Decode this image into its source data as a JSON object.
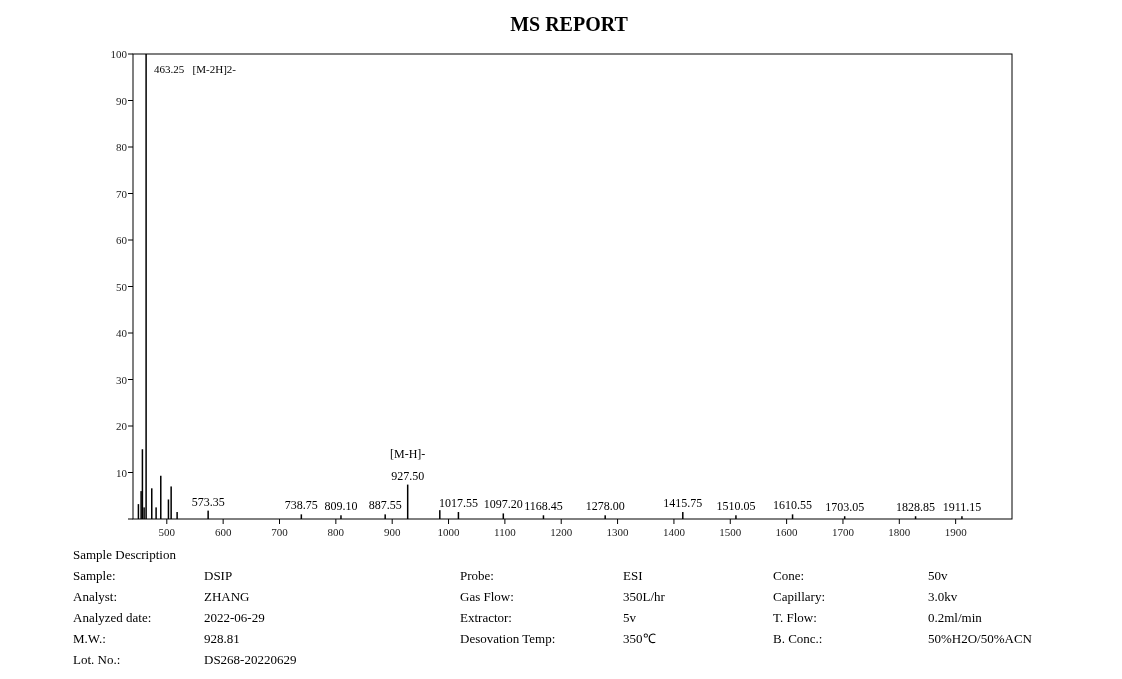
{
  "chart_data": {
    "type": "bar",
    "title": "MS REPORT",
    "color": "#000000",
    "x": [
      449.6,
      454.4,
      456.7,
      459.7,
      463.25,
      473.3,
      481,
      489.3,
      502.9,
      507.7,
      518.3,
      573.35,
      738.75,
      809.1,
      887.55,
      927.5,
      984.5,
      1017.55,
      1097.2,
      1168.45,
      1278,
      1415.75,
      1510.05,
      1610.55,
      1703.05,
      1828.85,
      1911.15
    ],
    "values": [
      3.2,
      6,
      15,
      2.5,
      100,
      6.6,
      2.5,
      9.3,
      4.2,
      7,
      1.5,
      1.8,
      1,
      0.8,
      1,
      7.4,
      1.9,
      1.5,
      1.2,
      0.8,
      0.8,
      1.5,
      0.8,
      1,
      0.6,
      0.6,
      0.6
    ],
    "xlim": [
      440,
      2000
    ],
    "ylim": [
      0,
      100
    ],
    "xticks": [
      500,
      600,
      700,
      800,
      900,
      1000,
      1100,
      1200,
      1300,
      1400,
      1500,
      1600,
      1700,
      1800,
      1900
    ],
    "yticks": [
      {
        "value": 0,
        "label": null
      },
      10,
      20,
      30,
      40,
      50,
      60,
      70,
      80,
      90,
      100
    ],
    "annotations": [
      {
        "text": "463.25   [M-2H]2-",
        "x": 463.25,
        "y": 100
      },
      {
        "text": "573.35",
        "x": 573.35,
        "y": 1.8
      },
      {
        "text": "738.75",
        "x": 738.75,
        "y": 1
      },
      {
        "text": "809.10",
        "x": 809.1,
        "y": 0.8
      },
      {
        "text": "887.55",
        "x": 887.55,
        "y": 1
      },
      {
        "text": "927.50",
        "x": 927.5,
        "y": 7.4
      },
      {
        "text": "[M-H]-",
        "x": 927.5,
        "y": 7.4
      },
      {
        "text": "1017.55",
        "x": 1017.55,
        "y": 1.5
      },
      {
        "text": "1097.20",
        "x": 1097.2,
        "y": 1.2
      },
      {
        "text": "1168.45",
        "x": 1168.45,
        "y": 0.8
      },
      {
        "text": "1278.00",
        "x": 1278,
        "y": 0.8
      },
      {
        "text": "1415.75",
        "x": 1415.75,
        "y": 1.5
      },
      {
        "text": "1510.05",
        "x": 1510.05,
        "y": 0.8
      },
      {
        "text": "1610.55",
        "x": 1610.55,
        "y": 1
      },
      {
        "text": "1703.05",
        "x": 1703.05,
        "y": 0.6
      },
      {
        "text": "1828.85",
        "x": 1828.85,
        "y": 0.6
      },
      {
        "text": "1911.15",
        "x": 1911.15,
        "y": 0.6
      },
      "Sample Description",
      "Sample:",
      "DSIP",
      "Probe:",
      "ESI",
      "Cone:",
      "50v",
      "Analyst:",
      "ZHANG",
      "Gas Flow:",
      "350L/hr",
      "Capillary:",
      "3.0kv",
      "Analyzed date:",
      "2022-06-29",
      "Extractor:",
      "5v",
      "T. Flow:",
      "0.2ml/min",
      "M.W.:",
      "928.81",
      "Desovation Temp:",
      "350℃",
      "B. Conc.:",
      "50%H2O/50%ACN",
      "Lot. No.:",
      "DS268-20220629"
    ]
  }
}
